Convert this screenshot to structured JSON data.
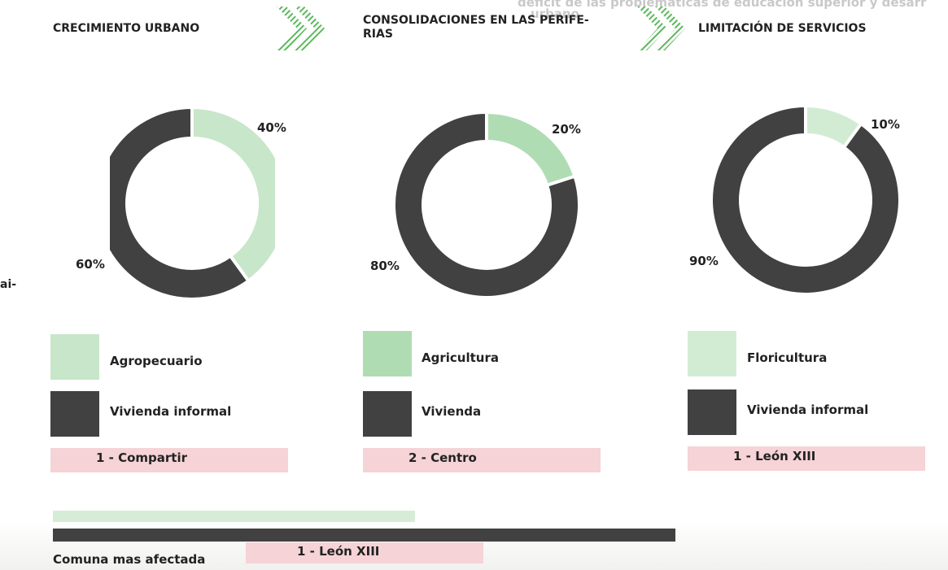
{
  "background_text": [
    "déficit de las problemáticas de educación superior y desarr",
    "urbano"
  ],
  "side_text": "ai-",
  "chart_data": [
    {
      "type": "pie",
      "donut": true,
      "title": "CRECIMIENTO URBANO",
      "categories": [
        "Agropecuario",
        "Vivienda informal"
      ],
      "values": [
        40,
        60
      ],
      "value_labels": [
        "40%",
        "60%"
      ],
      "colors": [
        "#c8e6c9",
        "#414141"
      ],
      "caption": "1 - Compartir"
    },
    {
      "type": "pie",
      "donut": true,
      "title": "CONSOLIDACIONES EN LAS PERIFE-RIAS",
      "categories": [
        "Agricultura",
        "Vivienda"
      ],
      "values": [
        20,
        80
      ],
      "value_labels": [
        "20%",
        "80%"
      ],
      "colors": [
        "#b0dcb4",
        "#414141"
      ],
      "caption": "2 - Centro"
    },
    {
      "type": "pie",
      "donut": true,
      "title": "LIMITACIÓN DE SERVICIOS",
      "categories": [
        "Floricultura",
        "Vivienda informal"
      ],
      "values": [
        10,
        90
      ],
      "value_labels": [
        "10%",
        "90%"
      ],
      "colors": [
        "#d2ecd4",
        "#414141"
      ],
      "caption": "1 - León XIII"
    }
  ],
  "footer": {
    "label": "Comuna mas afectada",
    "value": "1 - León XIII"
  }
}
